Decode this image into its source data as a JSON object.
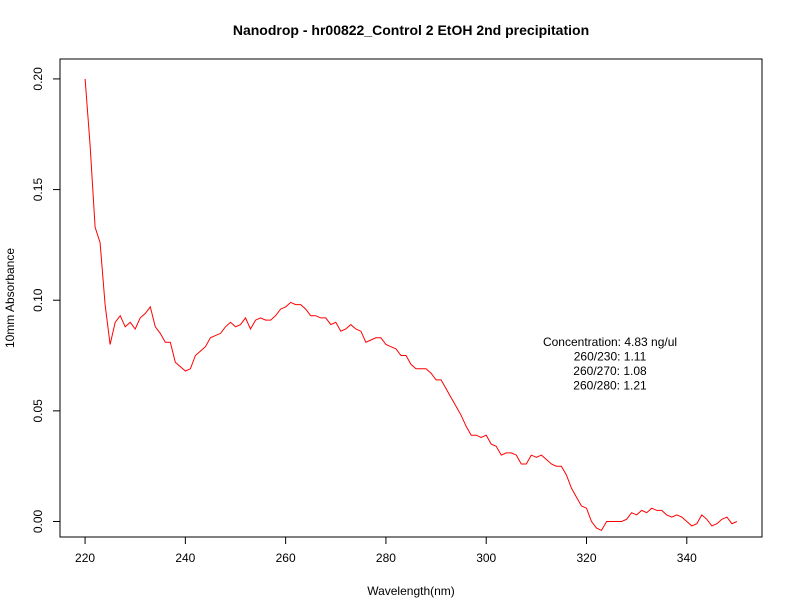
{
  "chart_data": {
    "type": "line",
    "title": "Nanodrop - hr00822_Control 2 EtOH 2nd precipitation",
    "xlabel": "Wavelength(nm)",
    "ylabel": "10mm Absorbance",
    "xlim": [
      215,
      355
    ],
    "ylim": [
      -0.007,
      0.209
    ],
    "x_ticks": [
      220,
      240,
      260,
      280,
      300,
      320,
      340
    ],
    "y_ticks": [
      0.0,
      0.05,
      0.1,
      0.15,
      0.2
    ],
    "x_tick_labels": [
      "220",
      "240",
      "260",
      "280",
      "300",
      "320",
      "340"
    ],
    "y_tick_labels": [
      "0.00",
      "0.05",
      "0.10",
      "0.15",
      "0.20"
    ],
    "grid": false,
    "line_color": "#ff0000",
    "annotations": [
      "Concentration: 4.83 ng/ul",
      "260/230: 1.11",
      "260/270: 1.08",
      "260/280: 1.21"
    ],
    "series": [
      {
        "x": [
          220,
          221,
          222,
          223,
          224,
          225,
          226,
          227,
          228,
          229,
          230,
          231,
          232,
          233,
          234,
          235,
          236,
          237,
          238,
          239,
          240,
          241,
          242,
          243,
          244,
          245,
          246,
          247,
          248,
          249,
          250,
          251,
          252,
          253,
          254,
          255,
          256,
          257,
          258,
          259,
          260,
          261,
          262,
          263,
          264,
          265,
          266,
          267,
          268,
          269,
          270,
          271,
          272,
          273,
          274,
          275,
          276,
          277,
          278,
          279,
          280,
          281,
          282,
          283,
          284,
          285,
          286,
          287,
          288,
          289,
          290,
          291,
          292,
          293,
          294,
          295,
          296,
          297,
          298,
          299,
          300,
          301,
          302,
          303,
          304,
          305,
          306,
          307,
          308,
          309,
          310,
          311,
          312,
          313,
          314,
          315,
          316,
          317,
          318,
          319,
          320,
          321,
          322,
          323,
          324,
          325,
          326,
          327,
          328,
          329,
          330,
          331,
          332,
          333,
          334,
          335,
          336,
          337,
          338,
          339,
          340,
          341,
          342,
          343,
          344,
          345,
          346,
          347,
          348,
          349,
          350
        ],
        "values": [
          0.2,
          0.17,
          0.133,
          0.126,
          0.098,
          0.08,
          0.09,
          0.093,
          0.088,
          0.09,
          0.087,
          0.092,
          0.094,
          0.097,
          0.088,
          0.085,
          0.081,
          0.081,
          0.072,
          0.07,
          0.068,
          0.069,
          0.075,
          0.077,
          0.079,
          0.083,
          0.084,
          0.085,
          0.088,
          0.09,
          0.088,
          0.089,
          0.092,
          0.087,
          0.091,
          0.092,
          0.091,
          0.091,
          0.093,
          0.096,
          0.097,
          0.099,
          0.098,
          0.098,
          0.096,
          0.093,
          0.093,
          0.092,
          0.092,
          0.089,
          0.09,
          0.086,
          0.087,
          0.089,
          0.087,
          0.086,
          0.081,
          0.082,
          0.083,
          0.083,
          0.08,
          0.079,
          0.078,
          0.075,
          0.075,
          0.071,
          0.069,
          0.069,
          0.069,
          0.067,
          0.064,
          0.064,
          0.06,
          0.056,
          0.052,
          0.048,
          0.043,
          0.039,
          0.039,
          0.038,
          0.039,
          0.035,
          0.034,
          0.03,
          0.031,
          0.031,
          0.03,
          0.026,
          0.026,
          0.03,
          0.029,
          0.03,
          0.028,
          0.026,
          0.025,
          0.025,
          0.021,
          0.015,
          0.011,
          0.007,
          0.006,
          0.0,
          -0.003,
          -0.004,
          0.0,
          0.0,
          0.0,
          0.0,
          0.001,
          0.004,
          0.003,
          0.005,
          0.004,
          0.006,
          0.005,
          0.005,
          0.003,
          0.002,
          0.003,
          0.002,
          0.0,
          -0.002,
          -0.001,
          0.003,
          0.001,
          -0.002,
          -0.001,
          0.001,
          0.002,
          -0.001,
          0.0
        ]
      }
    ]
  }
}
